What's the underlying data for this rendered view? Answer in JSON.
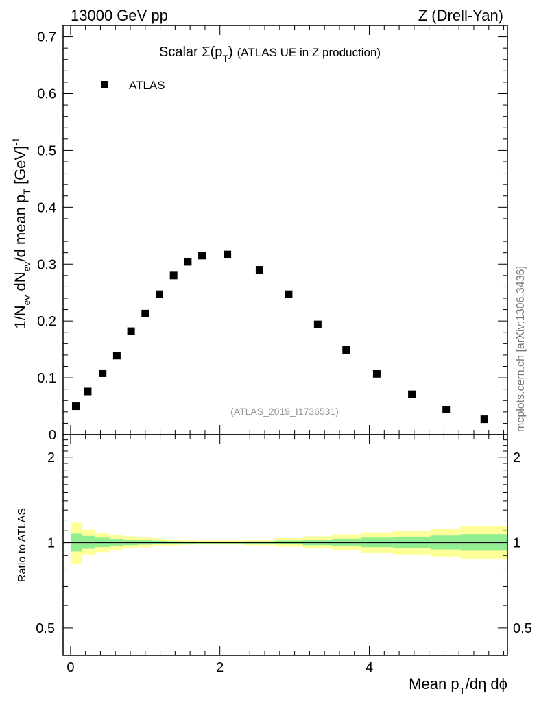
{
  "header": {
    "left": "13000 GeV pp",
    "right": "Z (Drell-Yan)"
  },
  "watermark": "mcplots.cern.ch [arXiv:1306.3436]",
  "chart_data": [
    {
      "type": "scatter",
      "title_main": "Scalar ",
      "title_sigma": "Σ(p",
      "title_sub": "T",
      "title_close": ")",
      "title_rest": "(ATLAS UE in Z production)",
      "analysis_id": "(ATLAS_2019_I1736531)",
      "ylabel": "1/N_ev dN_ev/d mean p_T [GeV]^-1",
      "ylim": [
        0,
        0.72
      ],
      "y_ticks": [
        "0",
        "0.1",
        "0.2",
        "0.3",
        "0.4",
        "0.5",
        "0.6",
        "0.7"
      ],
      "y_tick_values": [
        0,
        0.1,
        0.2,
        0.3,
        0.4,
        0.5,
        0.6,
        0.7
      ],
      "xlim": [
        -0.1,
        5.85
      ],
      "legend": {
        "label": "ATLAS",
        "placement": "top-left"
      },
      "series": [
        {
          "name": "ATLAS",
          "color": "#000000",
          "x": [
            0.07,
            0.23,
            0.43,
            0.62,
            0.81,
            1.0,
            1.19,
            1.38,
            1.57,
            1.76,
            2.1,
            2.53,
            2.92,
            3.31,
            3.69,
            4.1,
            4.57,
            5.03,
            5.54
          ],
          "y": [
            0.05,
            0.076,
            0.108,
            0.139,
            0.182,
            0.213,
            0.247,
            0.28,
            0.304,
            0.315,
            0.317,
            0.29,
            0.247,
            0.194,
            0.149,
            0.107,
            0.071,
            0.044,
            0.027
          ]
        }
      ]
    },
    {
      "type": "area",
      "ylabel": "Ratio to ATLAS",
      "xlabel_main": "Mean p",
      "xlabel_sub": "T",
      "xlabel_rest": "/dη dϕ",
      "x_ticks": [
        "0",
        "2",
        "4"
      ],
      "x_tick_values": [
        0,
        2,
        4
      ],
      "y_ticks": [
        "0.5",
        "1",
        "2"
      ],
      "y_tick_values": [
        0.5,
        1,
        2
      ],
      "ylim": [
        0.4,
        2.4
      ],
      "scale": "log",
      "reference_line": 1,
      "bins": [
        0,
        0.15,
        0.33,
        0.52,
        0.71,
        0.9,
        1.1,
        1.28,
        1.47,
        1.66,
        1.86,
        2.31,
        2.74,
        3.11,
        3.5,
        3.89,
        4.32,
        4.82,
        5.22,
        5.85
      ],
      "bands": [
        {
          "name": "stat",
          "color": "#90ee90",
          "lo": [
            0.93,
            0.95,
            0.963,
            0.972,
            0.978,
            0.983,
            0.986,
            0.989,
            0.991,
            0.992,
            0.992,
            0.99,
            0.985,
            0.978,
            0.97,
            0.962,
            0.955,
            0.945,
            0.935
          ],
          "hi": [
            1.075,
            1.055,
            1.04,
            1.03,
            1.024,
            1.018,
            1.014,
            1.011,
            1.009,
            1.008,
            1.008,
            1.01,
            1.016,
            1.023,
            1.031,
            1.04,
            1.048,
            1.058,
            1.07
          ]
        },
        {
          "name": "syst",
          "color": "#ffff99",
          "lo": [
            0.84,
            0.905,
            0.925,
            0.94,
            0.953,
            0.962,
            0.97,
            0.976,
            0.981,
            0.984,
            0.984,
            0.978,
            0.966,
            0.952,
            0.937,
            0.92,
            0.907,
            0.893,
            0.875
          ],
          "hi": [
            1.175,
            1.11,
            1.082,
            1.065,
            1.051,
            1.04,
            1.032,
            1.025,
            1.02,
            1.017,
            1.017,
            1.024,
            1.036,
            1.051,
            1.068,
            1.085,
            1.101,
            1.12,
            1.14
          ]
        }
      ]
    }
  ]
}
